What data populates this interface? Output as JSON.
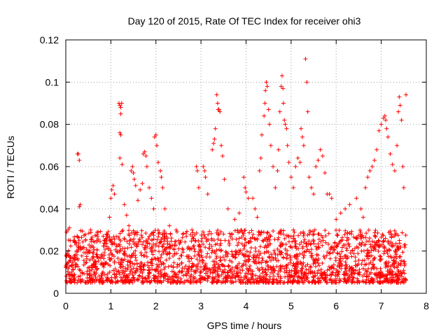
{
  "chart_data": {
    "type": "scatter",
    "title": "Day 120 of 2015, Rate Of TEC Index for receiver ohi3",
    "xlabel": "GPS time / hours",
    "ylabel": "ROTI / TECUs",
    "xlim": [
      0,
      8
    ],
    "ylim": [
      0,
      0.12
    ],
    "xticks": [
      "0",
      "1",
      "2",
      "3",
      "4",
      "5",
      "6",
      "7",
      "8"
    ],
    "yticks": [
      "0",
      "0.02",
      "0.04",
      "0.06",
      "0.08",
      "0.1",
      "0.12"
    ],
    "grid": true,
    "marker": "+",
    "color": "#ff0000",
    "x_range_of_data": [
      0.0,
      7.55
    ],
    "baseline_band": [
      0.005,
      0.03
    ],
    "series": [
      {
        "name": "ROTI",
        "points": [
          [
            0.02,
            0.029
          ],
          [
            0.05,
            0.03
          ],
          [
            0.08,
            0.031
          ],
          [
            0.1,
            0.025
          ],
          [
            0.26,
            0.066
          ],
          [
            0.28,
            0.066
          ],
          [
            0.3,
            0.063
          ],
          [
            0.3,
            0.041
          ],
          [
            0.32,
            0.042
          ],
          [
            0.55,
            0.03
          ],
          [
            0.7,
            0.027
          ],
          [
            0.9,
            0.028
          ],
          [
            0.97,
            0.036
          ],
          [
            1.0,
            0.045
          ],
          [
            1.02,
            0.049
          ],
          [
            1.05,
            0.051
          ],
          [
            1.08,
            0.047
          ],
          [
            1.18,
            0.09
          ],
          [
            1.2,
            0.089
          ],
          [
            1.22,
            0.088
          ],
          [
            1.22,
            0.085
          ],
          [
            1.24,
            0.09
          ],
          [
            1.2,
            0.076
          ],
          [
            1.22,
            0.075
          ],
          [
            1.2,
            0.064
          ],
          [
            1.25,
            0.061
          ],
          [
            1.3,
            0.042
          ],
          [
            1.35,
            0.037
          ],
          [
            1.4,
            0.032
          ],
          [
            1.45,
            0.058
          ],
          [
            1.48,
            0.06
          ],
          [
            1.5,
            0.057
          ],
          [
            1.52,
            0.054
          ],
          [
            1.55,
            0.051
          ],
          [
            1.6,
            0.044
          ],
          [
            1.65,
            0.049
          ],
          [
            1.7,
            0.052
          ],
          [
            1.72,
            0.066
          ],
          [
            1.75,
            0.067
          ],
          [
            1.78,
            0.065
          ],
          [
            1.8,
            0.06
          ],
          [
            1.85,
            0.05
          ],
          [
            1.9,
            0.045
          ],
          [
            1.95,
            0.04
          ],
          [
            1.97,
            0.074
          ],
          [
            2.0,
            0.075
          ],
          [
            2.02,
            0.07
          ],
          [
            2.05,
            0.062
          ],
          [
            2.1,
            0.058
          ],
          [
            2.12,
            0.055
          ],
          [
            2.15,
            0.05
          ],
          [
            2.2,
            0.04
          ],
          [
            2.3,
            0.032
          ],
          [
            2.45,
            0.03
          ],
          [
            2.6,
            0.028
          ],
          [
            2.8,
            0.03
          ],
          [
            2.9,
            0.06
          ],
          [
            2.92,
            0.058
          ],
          [
            2.95,
            0.05
          ],
          [
            3.05,
            0.06
          ],
          [
            3.08,
            0.058
          ],
          [
            3.1,
            0.055
          ],
          [
            3.15,
            0.047
          ],
          [
            3.25,
            0.068
          ],
          [
            3.28,
            0.071
          ],
          [
            3.3,
            0.073
          ],
          [
            3.32,
            0.078
          ],
          [
            3.35,
            0.094
          ],
          [
            3.37,
            0.09
          ],
          [
            3.38,
            0.087
          ],
          [
            3.4,
            0.087
          ],
          [
            3.42,
            0.086
          ],
          [
            3.45,
            0.07
          ],
          [
            3.48,
            0.065
          ],
          [
            3.52,
            0.054
          ],
          [
            3.6,
            0.04
          ],
          [
            3.75,
            0.035
          ],
          [
            3.85,
            0.038
          ],
          [
            3.95,
            0.055
          ],
          [
            3.98,
            0.05
          ],
          [
            4.0,
            0.048
          ],
          [
            4.05,
            0.045
          ],
          [
            4.15,
            0.045
          ],
          [
            4.2,
            0.04
          ],
          [
            4.25,
            0.036
          ],
          [
            4.3,
            0.058
          ],
          [
            4.33,
            0.064
          ],
          [
            4.35,
            0.075
          ],
          [
            4.4,
            0.084
          ],
          [
            4.42,
            0.09
          ],
          [
            4.43,
            0.096
          ],
          [
            4.45,
            0.1
          ],
          [
            4.47,
            0.098
          ],
          [
            4.5,
            0.087
          ],
          [
            4.52,
            0.08
          ],
          [
            4.55,
            0.07
          ],
          [
            4.6,
            0.06
          ],
          [
            4.65,
            0.05
          ],
          [
            4.7,
            0.058
          ],
          [
            4.72,
            0.068
          ],
          [
            4.75,
            0.086
          ],
          [
            4.78,
            0.098
          ],
          [
            4.8,
            0.103
          ],
          [
            4.82,
            0.097
          ],
          [
            4.83,
            0.09
          ],
          [
            4.85,
            0.082
          ],
          [
            4.87,
            0.08
          ],
          [
            4.9,
            0.078
          ],
          [
            4.92,
            0.07
          ],
          [
            4.95,
            0.062
          ],
          [
            5.0,
            0.055
          ],
          [
            5.05,
            0.05
          ],
          [
            5.1,
            0.06
          ],
          [
            5.15,
            0.064
          ],
          [
            5.2,
            0.062
          ],
          [
            5.22,
            0.078
          ],
          [
            5.25,
            0.074
          ],
          [
            5.28,
            0.07
          ],
          [
            5.32,
            0.111
          ],
          [
            5.35,
            0.1
          ],
          [
            5.37,
            0.086
          ],
          [
            5.4,
            0.055
          ],
          [
            5.45,
            0.05
          ],
          [
            5.5,
            0.047
          ],
          [
            5.55,
            0.06
          ],
          [
            5.6,
            0.063
          ],
          [
            5.65,
            0.068
          ],
          [
            5.7,
            0.065
          ],
          [
            5.75,
            0.057
          ],
          [
            5.8,
            0.047
          ],
          [
            5.85,
            0.047
          ],
          [
            5.9,
            0.045
          ],
          [
            6.0,
            0.035
          ],
          [
            6.1,
            0.038
          ],
          [
            6.2,
            0.04
          ],
          [
            6.3,
            0.042
          ],
          [
            6.45,
            0.045
          ],
          [
            6.55,
            0.04
          ],
          [
            6.6,
            0.036
          ],
          [
            6.65,
            0.05
          ],
          [
            6.7,
            0.055
          ],
          [
            6.75,
            0.058
          ],
          [
            6.8,
            0.06
          ],
          [
            6.85,
            0.063
          ],
          [
            6.9,
            0.068
          ],
          [
            6.95,
            0.077
          ],
          [
            7.0,
            0.08
          ],
          [
            7.05,
            0.083
          ],
          [
            7.08,
            0.084
          ],
          [
            7.1,
            0.082
          ],
          [
            7.12,
            0.078
          ],
          [
            7.15,
            0.074
          ],
          [
            7.2,
            0.066
          ],
          [
            7.25,
            0.061
          ],
          [
            7.3,
            0.058
          ],
          [
            7.35,
            0.07
          ],
          [
            7.38,
            0.086
          ],
          [
            7.4,
            0.093
          ],
          [
            7.42,
            0.089
          ],
          [
            7.45,
            0.082
          ],
          [
            7.48,
            0.06
          ],
          [
            7.5,
            0.05
          ],
          [
            7.55,
            0.094
          ]
        ]
      }
    ]
  }
}
